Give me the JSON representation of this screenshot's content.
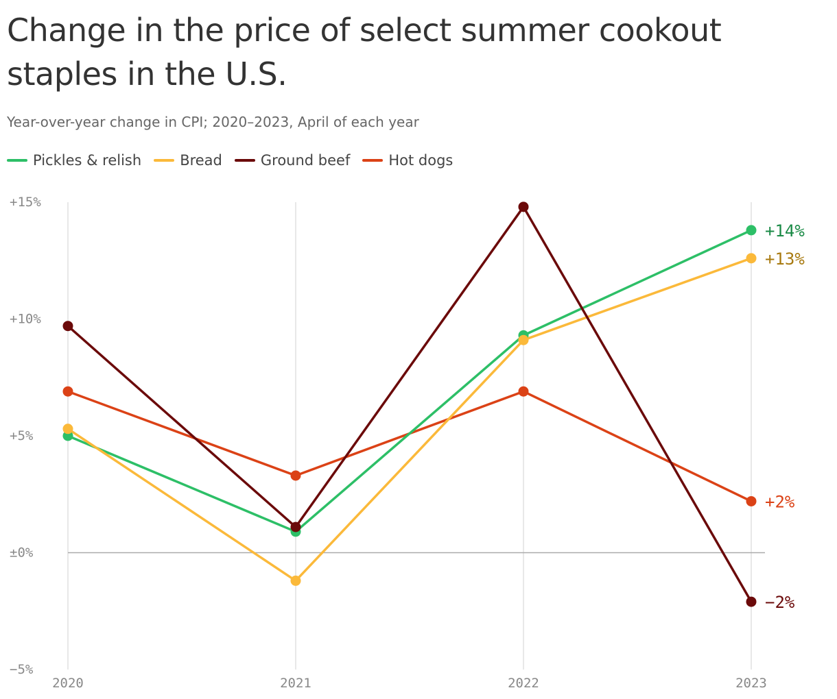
{
  "chart_data": {
    "type": "line",
    "title": "Change in the price of select summer cookout staples in the U.S.",
    "subtitle": "Year-over-year change in CPI; 2020–2023, April of each year",
    "x": [
      "2020",
      "2021",
      "2022",
      "2023"
    ],
    "ylim": [
      -5,
      15
    ],
    "yticks": [
      {
        "value": 15,
        "label": "+15%"
      },
      {
        "value": 10,
        "label": "+10%"
      },
      {
        "value": 5,
        "label": "+5%"
      },
      {
        "value": 0,
        "label": "±0%"
      },
      {
        "value": -5,
        "label": "−5%"
      }
    ],
    "grid": "vertical",
    "legend_position": "top-left",
    "series": [
      {
        "name": "Pickles & relish",
        "color": "#2dbf67",
        "label_color": "#1a8a46",
        "values": [
          5.0,
          0.9,
          9.3,
          13.8
        ],
        "end_label": "+14%"
      },
      {
        "name": "Bread",
        "color": "#fbb93a",
        "label_color": "#a87a10",
        "values": [
          5.3,
          -1.2,
          9.1,
          12.6
        ],
        "end_label": "+13%"
      },
      {
        "name": "Ground beef",
        "color": "#6b0a0a",
        "label_color": "#6b0a0a",
        "values": [
          9.7,
          1.1,
          14.8,
          -2.1
        ],
        "end_label": "−2%"
      },
      {
        "name": "Hot dogs",
        "color": "#db4216",
        "label_color": "#db4216",
        "values": [
          6.9,
          3.3,
          6.9,
          2.2
        ],
        "end_label": "+2%"
      }
    ]
  }
}
